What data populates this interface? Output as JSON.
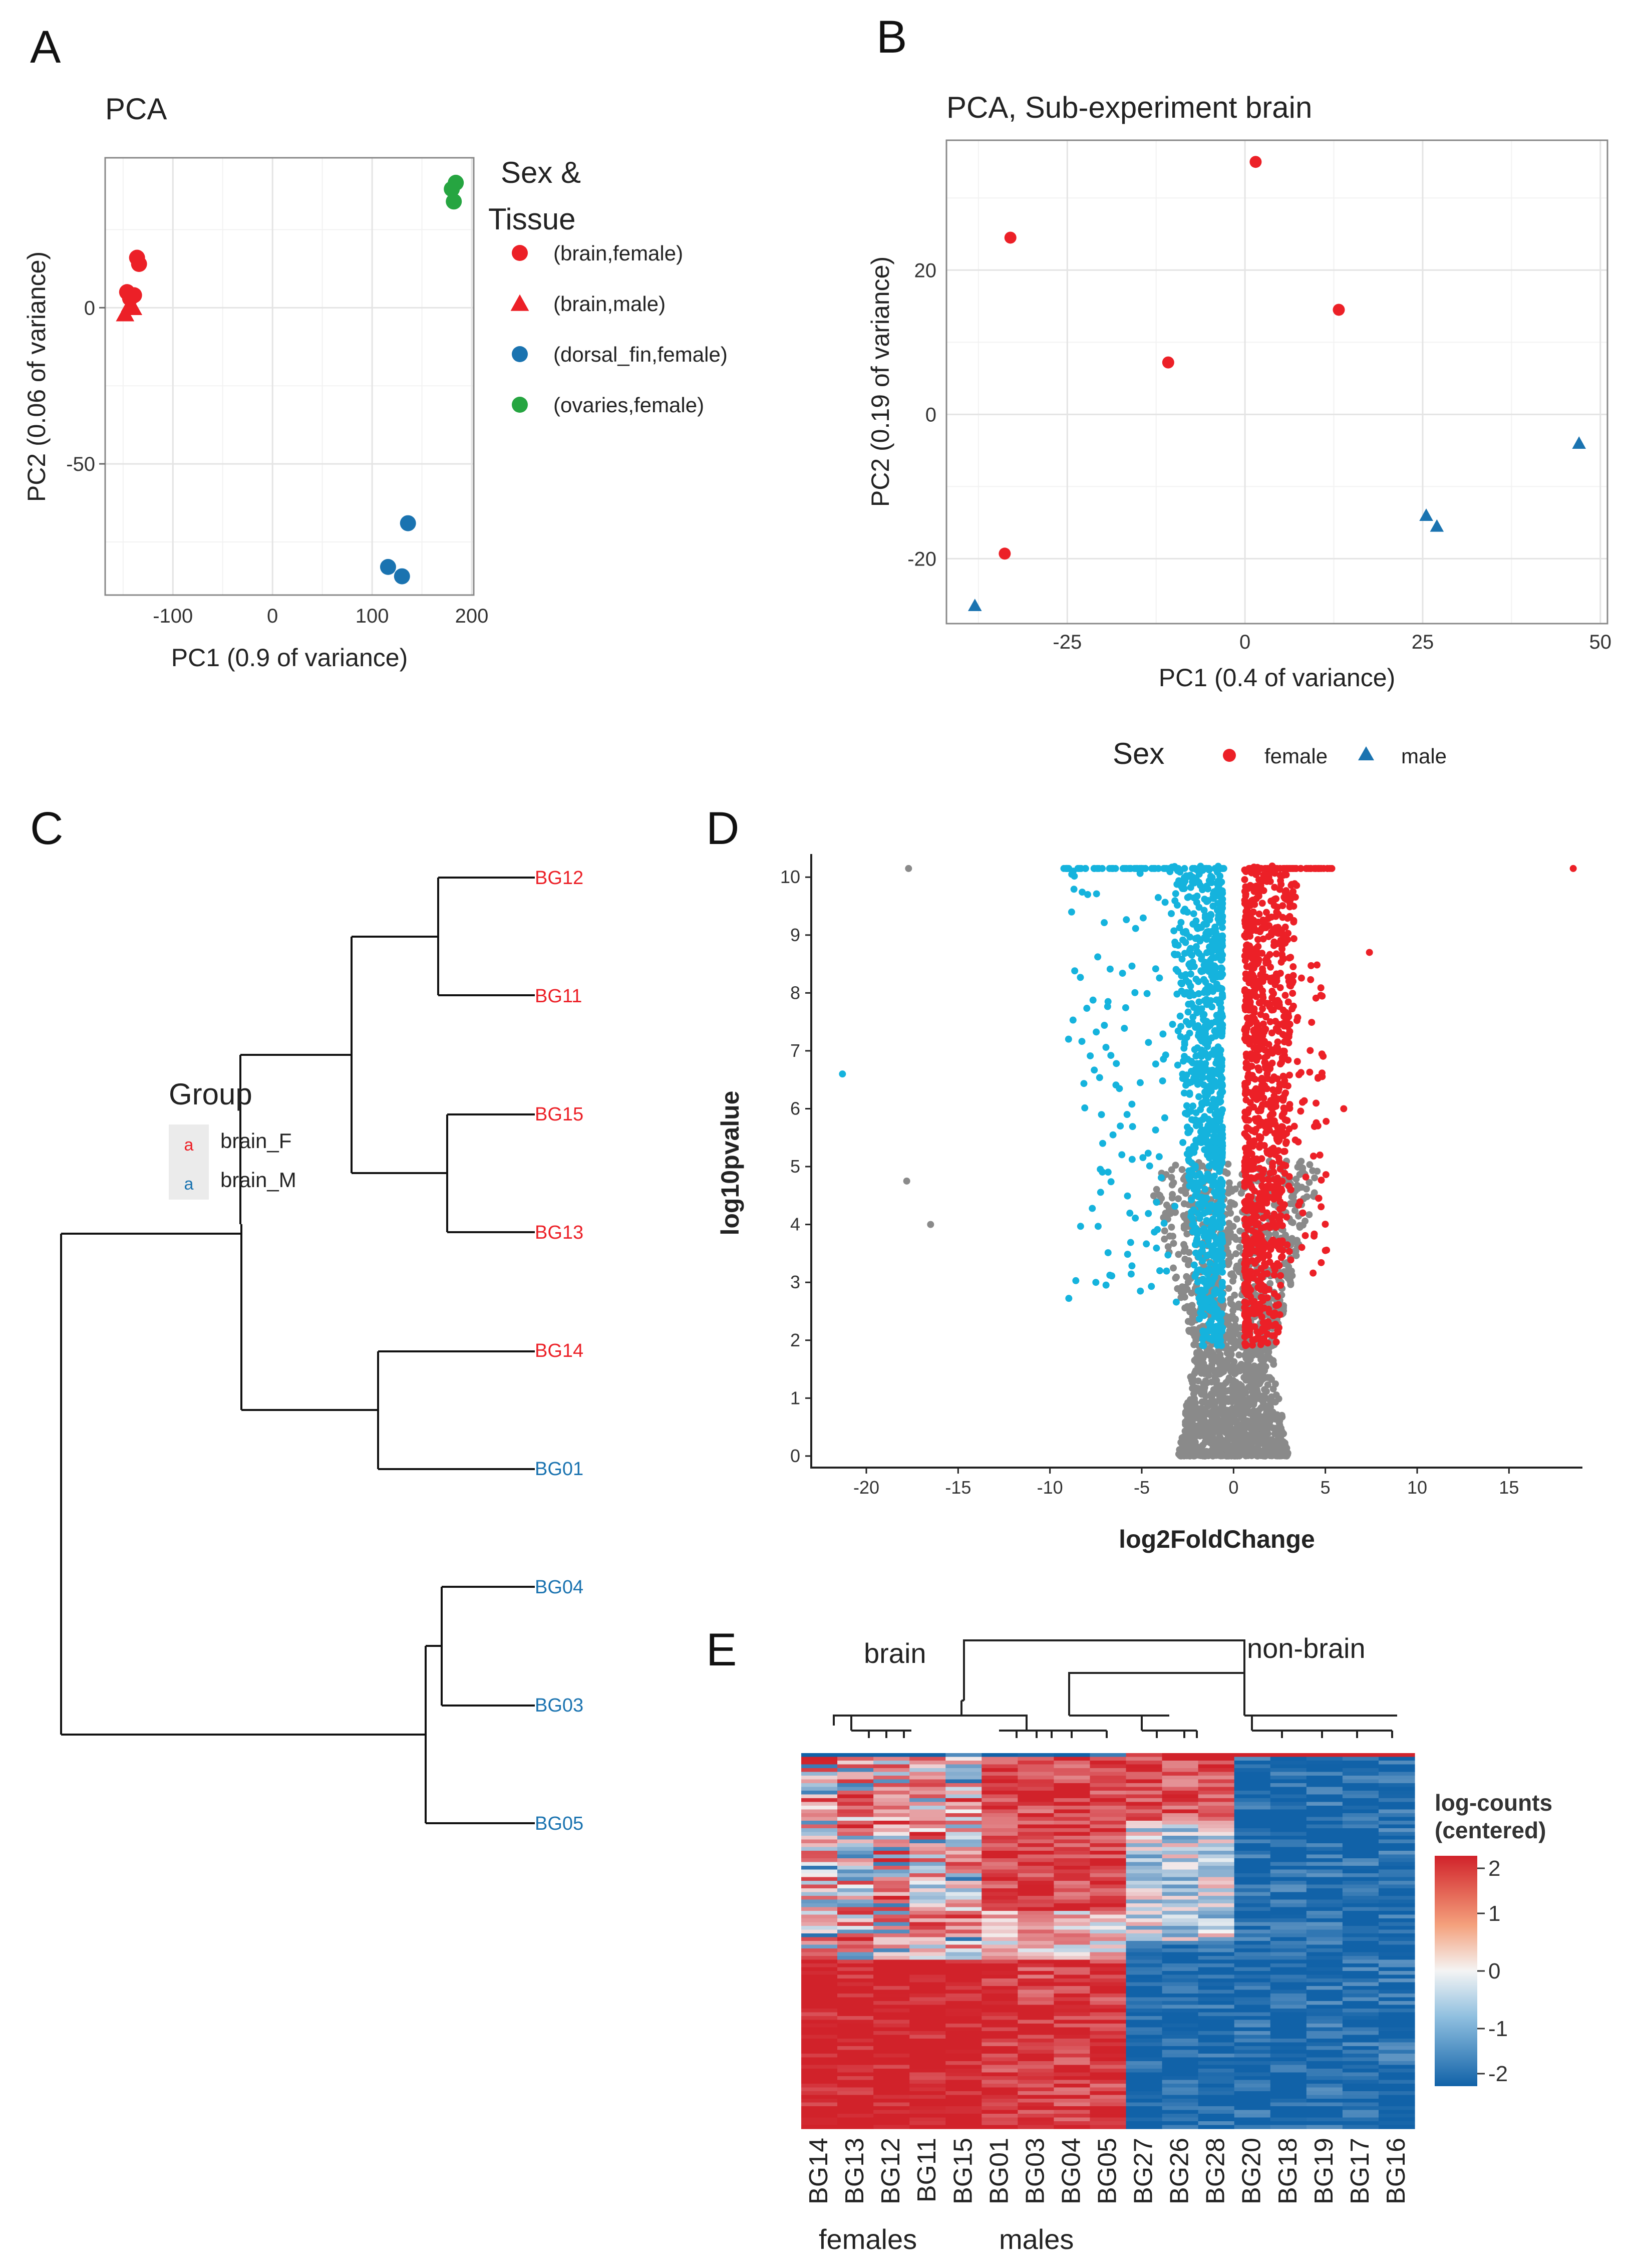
{
  "panels": {
    "a": "A",
    "b": "B",
    "c": "C",
    "d": "D",
    "e": "E"
  },
  "colors": {
    "red": "#ec2027",
    "blue": "#1a73b0",
    "green": "#26a541",
    "cyan": "#15b3dd",
    "grey": "#8a8a8a",
    "hmRed": "#d1222a",
    "hmBlue": "#1162a8"
  },
  "chart_data": [
    {
      "id": "A",
      "type": "scatter",
      "title": "PCA",
      "xlabel": "PC1 (0.9 of variance)",
      "ylabel": "PC2 (0.06 of variance)",
      "xlim": [
        -168,
        202
      ],
      "ylim": [
        -92,
        48
      ],
      "xticks": [
        -100,
        0,
        100,
        200
      ],
      "yticks": [
        -50,
        0
      ],
      "legend": {
        "title_lines": [
          "Sex &",
          "Tissue"
        ],
        "placement": "right"
      },
      "series": [
        {
          "name": "(brain,female)",
          "shape": "circle",
          "color": "#ec2027",
          "points": [
            [
              -136,
              16
            ],
            [
              -134,
              14
            ],
            [
              -146,
              5
            ],
            [
              -143,
              3
            ],
            [
              -139,
              4
            ]
          ]
        },
        {
          "name": "(brain,male)",
          "shape": "triangle",
          "color": "#ec2027",
          "points": [
            [
              -148,
              -2
            ],
            [
              -143,
              1
            ],
            [
              -140,
              0
            ]
          ]
        },
        {
          "name": "(dorsal_fin,female)",
          "shape": "circle",
          "color": "#1a73b0",
          "points": [
            [
              136,
              -69
            ],
            [
              116,
              -83
            ],
            [
              130,
              -86
            ]
          ]
        },
        {
          "name": "(ovaries,female)",
          "shape": "circle",
          "color": "#26a541",
          "points": [
            [
              184,
              40
            ],
            [
              180,
              38
            ],
            [
              182,
              34
            ]
          ]
        }
      ]
    },
    {
      "id": "B",
      "type": "scatter",
      "title": "PCA, Sub-experiment brain",
      "xlabel": "PC1 (0.4 of variance)",
      "ylabel": "PC2 (0.19 of variance)",
      "xlim": [
        -42,
        51
      ],
      "ylim": [
        -29,
        38
      ],
      "xticks": [
        -25,
        0,
        25,
        50
      ],
      "yticks": [
        -20,
        0,
        20
      ],
      "legend": {
        "title": "Sex",
        "placement": "bottom"
      },
      "series": [
        {
          "name": "female",
          "shape": "circle",
          "color": "#ec2027",
          "points": [
            [
              1.5,
              35
            ],
            [
              -33,
              24.5
            ],
            [
              13.2,
              14.5
            ],
            [
              -10.8,
              7.2
            ],
            [
              -33.8,
              -19.3
            ]
          ]
        },
        {
          "name": "male",
          "shape": "triangle",
          "color": "#1a73b0",
          "points": [
            [
              47,
              -4
            ],
            [
              25.5,
              -14
            ],
            [
              27,
              -15.5
            ],
            [
              -38,
              -26.5
            ]
          ]
        }
      ]
    },
    {
      "id": "C",
      "type": "dendrogram",
      "legend": {
        "title": "Group",
        "entries": [
          {
            "label": "brain_F",
            "key": "a",
            "color": "#ec2027"
          },
          {
            "label": "brain_M",
            "key": "a",
            "color": "#1a73b0"
          }
        ]
      },
      "leaves": [
        {
          "label": "BG12",
          "color": "#ec2027"
        },
        {
          "label": "BG11",
          "color": "#ec2027"
        },
        {
          "label": "BG15",
          "color": "#ec2027"
        },
        {
          "label": "BG13",
          "color": "#ec2027"
        },
        {
          "label": "BG14",
          "color": "#ec2027"
        },
        {
          "label": "BG01",
          "color": "#1a73b0"
        },
        {
          "label": "BG04",
          "color": "#1a73b0"
        },
        {
          "label": "BG03",
          "color": "#1a73b0"
        },
        {
          "label": "BG05",
          "color": "#1a73b0"
        }
      ]
    },
    {
      "id": "D",
      "type": "scatter",
      "title": "",
      "xlabel": "log2FoldChange",
      "ylabel": "log10pvalue",
      "xlim": [
        -23,
        19
      ],
      "ylim": [
        -0.2,
        10.4
      ],
      "xticks": [
        -20,
        -15,
        -10,
        -5,
        0,
        5,
        10,
        15
      ],
      "yticks": [
        0,
        1,
        2,
        3,
        4,
        5,
        6,
        7,
        8,
        9,
        10
      ],
      "outliers": [
        {
          "x": -21.3,
          "y": 6.6,
          "color": "cyan"
        },
        {
          "x": -17.8,
          "y": 4.75,
          "color": "grey"
        },
        {
          "x": -16.5,
          "y": 4.0,
          "color": "grey"
        },
        {
          "x": -17.7,
          "y": 10.15,
          "color": "grey"
        },
        {
          "x": 18.5,
          "y": 10.15,
          "color": "red"
        },
        {
          "x": 7.4,
          "y": 8.7,
          "color": "red"
        },
        {
          "x": 6.0,
          "y": 6.0,
          "color": "red"
        },
        {
          "x": 5.0,
          "y": 3.55,
          "color": "red"
        },
        {
          "x": -7.5,
          "y": 3.0,
          "color": "cyan"
        },
        {
          "x": -5.8,
          "y": 5.9,
          "color": "cyan"
        }
      ]
    },
    {
      "id": "E",
      "type": "heatmap",
      "top_labels": [
        "brain",
        "non-brain"
      ],
      "group_labels": [
        "females",
        "males"
      ],
      "columns": [
        "BG14",
        "BG13",
        "BG12",
        "BG11",
        "BG15",
        "BG01",
        "BG03",
        "BG04",
        "BG05",
        "BG27",
        "BG26",
        "BG28",
        "BG20",
        "BG18",
        "BG19",
        "BG17",
        "BG16"
      ],
      "legend": {
        "title_lines": [
          "log-counts",
          "(centered)"
        ],
        "range": [
          -2,
          2
        ],
        "ticks": [
          2,
          1,
          0,
          -1,
          -2
        ]
      }
    }
  ]
}
